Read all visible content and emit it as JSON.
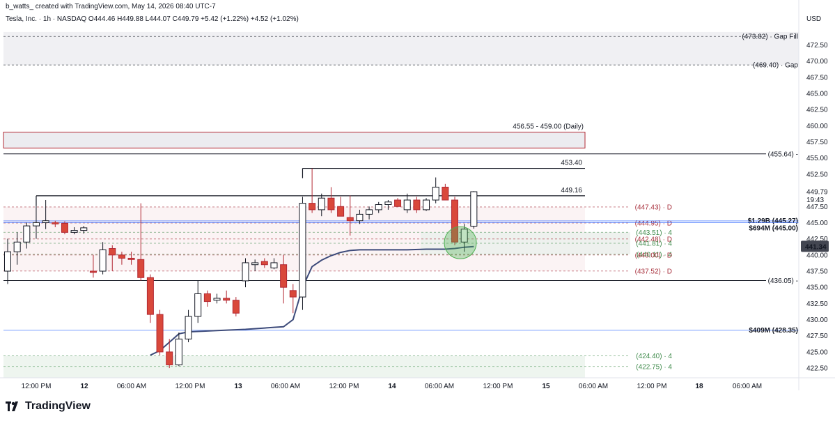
{
  "header": {
    "creator": "b_watts_ created with TradingView.com, May 14, 2026 08:40 UTC-7",
    "symbol_line": "Tesla, Inc. · 1h · NASDAQ  O444.46  H449.88  L444.07  C449.79  +5.42 (+1.22%)  +4.52 (+1.02%)"
  },
  "currency": "USD",
  "footer": {
    "brand": "TradingView"
  },
  "colors": {
    "up_body": "#ffffff",
    "up_border": "#131722",
    "down_body": "#d9483b",
    "down_border": "#b22833",
    "vwap": "#3c4a7a",
    "red_level": "#a8323e",
    "green_level": "#3e8a4a",
    "blue_level": "#2962ff",
    "last_price_bg": "#434651",
    "circle": "#4caf50"
  },
  "chart_data": {
    "type": "candlestick",
    "ylim": [
      421,
      476
    ],
    "y_ticks": [
      "472.50",
      "470.00",
      "467.50",
      "465.00",
      "462.50",
      "460.00",
      "457.50",
      "455.00",
      "452.50",
      "449.79",
      "447.50",
      "445.00",
      "442.50",
      "440.00",
      "437.50",
      "435.00",
      "432.50",
      "430.00",
      "427.50",
      "425.00",
      "422.50"
    ],
    "x_ticks": [
      "12:00 PM",
      "12",
      "06:00 AM",
      "12:00 PM",
      "13",
      "06:00 AM",
      "12:00 PM",
      "14",
      "06:00 AM",
      "12:00 PM",
      "15",
      "06:00 AM",
      "12:00 PM",
      "18",
      "06:00 AM"
    ],
    "last_price": "441.34",
    "current_price_label": "449.79",
    "countdown": "19:43",
    "candles": [
      {
        "o": 437.5,
        "h": 442.5,
        "l": 435.5,
        "c": 440.5
      },
      {
        "o": 440.5,
        "h": 443.5,
        "l": 438.5,
        "c": 442.0
      },
      {
        "o": 442.0,
        "h": 445.0,
        "l": 441.0,
        "c": 444.5
      },
      {
        "o": 444.5,
        "h": 447.8,
        "l": 442.5,
        "c": 445.0
      },
      {
        "o": 445.0,
        "h": 448.5,
        "l": 444.0,
        "c": 445.3
      },
      {
        "o": 445.0,
        "h": 445.3,
        "l": 444.3,
        "c": 444.8
      },
      {
        "o": 444.9,
        "h": 445.2,
        "l": 443.2,
        "c": 443.5
      },
      {
        "o": 443.5,
        "h": 444.3,
        "l": 443.2,
        "c": 443.8
      },
      {
        "o": 443.8,
        "h": 444.5,
        "l": 443.3,
        "c": 444.2
      },
      {
        "o": 437.5,
        "h": 440.0,
        "l": 436.5,
        "c": 437.3
      },
      {
        "o": 437.5,
        "h": 442.0,
        "l": 437.0,
        "c": 440.8
      },
      {
        "o": 441.0,
        "h": 441.5,
        "l": 437.5,
        "c": 440.0
      },
      {
        "o": 440.0,
        "h": 440.5,
        "l": 438.5,
        "c": 439.5
      },
      {
        "o": 439.5,
        "h": 440.5,
        "l": 438.5,
        "c": 439.3
      },
      {
        "o": 439.3,
        "h": 448.0,
        "l": 436.0,
        "c": 436.5
      },
      {
        "o": 436.5,
        "h": 437.0,
        "l": 429.5,
        "c": 430.8
      },
      {
        "o": 430.8,
        "h": 431.5,
        "l": 424.5,
        "c": 425.0
      },
      {
        "o": 425.0,
        "h": 427.0,
        "l": 422.5,
        "c": 423.0
      },
      {
        "o": 423.0,
        "h": 428.0,
        "l": 422.8,
        "c": 427.0
      },
      {
        "o": 427.0,
        "h": 431.5,
        "l": 426.5,
        "c": 430.5
      },
      {
        "o": 430.5,
        "h": 436.0,
        "l": 429.5,
        "c": 434.0
      },
      {
        "o": 434.0,
        "h": 434.5,
        "l": 432.0,
        "c": 432.8
      },
      {
        "o": 433.0,
        "h": 434.0,
        "l": 432.5,
        "c": 433.3
      },
      {
        "o": 433.3,
        "h": 434.5,
        "l": 432.5,
        "c": 433.0
      },
      {
        "o": 433.0,
        "h": 433.5,
        "l": 430.5,
        "c": 431.0
      },
      {
        "o": 436.0,
        "h": 439.5,
        "l": 435.0,
        "c": 438.8
      },
      {
        "o": 438.5,
        "h": 439.3,
        "l": 437.5,
        "c": 438.8
      },
      {
        "o": 439.0,
        "h": 439.5,
        "l": 438.0,
        "c": 438.5
      },
      {
        "o": 438.0,
        "h": 439.5,
        "l": 437.8,
        "c": 438.8
      },
      {
        "o": 438.5,
        "h": 440.0,
        "l": 432.5,
        "c": 435.0
      },
      {
        "o": 434.5,
        "h": 435.5,
        "l": 431.0,
        "c": 433.5
      },
      {
        "o": 433.5,
        "h": 449.0,
        "l": 431.5,
        "c": 448.0
      },
      {
        "o": 448.0,
        "h": 453.4,
        "l": 446.5,
        "c": 447.0
      },
      {
        "o": 447.0,
        "h": 449.5,
        "l": 446.0,
        "c": 448.8
      },
      {
        "o": 448.8,
        "h": 450.5,
        "l": 446.5,
        "c": 447.0
      },
      {
        "o": 447.5,
        "h": 449.0,
        "l": 446.0,
        "c": 446.0
      },
      {
        "o": 445.8,
        "h": 449.2,
        "l": 443.0,
        "c": 445.3
      },
      {
        "o": 445.3,
        "h": 447.0,
        "l": 444.8,
        "c": 446.3
      },
      {
        "o": 446.3,
        "h": 447.5,
        "l": 445.5,
        "c": 447.0
      },
      {
        "o": 447.0,
        "h": 448.2,
        "l": 446.5,
        "c": 447.8
      },
      {
        "o": 447.8,
        "h": 448.5,
        "l": 447.0,
        "c": 448.2
      },
      {
        "o": 448.5,
        "h": 448.8,
        "l": 447.5,
        "c": 447.5
      },
      {
        "o": 447.0,
        "h": 449.5,
        "l": 446.5,
        "c": 448.5
      },
      {
        "o": 448.5,
        "h": 449.0,
        "l": 446.5,
        "c": 447.0
      },
      {
        "o": 447.0,
        "h": 448.8,
        "l": 446.8,
        "c": 448.5
      },
      {
        "o": 448.5,
        "h": 452.0,
        "l": 448.0,
        "c": 450.5
      },
      {
        "o": 450.5,
        "h": 451.0,
        "l": 448.5,
        "c": 448.5
      },
      {
        "o": 448.5,
        "h": 449.0,
        "l": 441.5,
        "c": 442.0
      },
      {
        "o": 442.0,
        "h": 444.8,
        "l": 440.5,
        "c": 444.0
      },
      {
        "o": 444.46,
        "h": 449.88,
        "l": 444.07,
        "c": 449.79
      }
    ],
    "vwap": [
      {
        "i": 29,
        "v": 428.9
      },
      {
        "i": 30,
        "v": 430.0
      },
      {
        "i": 31,
        "v": 435.0
      },
      {
        "i": 32,
        "v": 438.2
      },
      {
        "i": 33,
        "v": 439.2
      },
      {
        "i": 34,
        "v": 439.9
      },
      {
        "i": 35,
        "v": 440.4
      },
      {
        "i": 36,
        "v": 440.7
      },
      {
        "i": 37,
        "v": 440.8
      },
      {
        "i": 38,
        "v": 440.8
      },
      {
        "i": 40,
        "v": 440.8
      },
      {
        "i": 42,
        "v": 440.8
      },
      {
        "i": 44,
        "v": 440.9
      },
      {
        "i": 46,
        "v": 440.9
      },
      {
        "i": 47,
        "v": 441.0
      },
      {
        "i": 48,
        "v": 441.2
      },
      {
        "i": 49,
        "v": 441.3
      }
    ],
    "vwap_early": [
      {
        "i": 15,
        "v": 424.5
      },
      {
        "i": 16,
        "v": 425.2
      },
      {
        "i": 17,
        "v": 426.5
      },
      {
        "i": 18,
        "v": 427.8
      },
      {
        "i": 19,
        "v": 428.1
      },
      {
        "i": 22,
        "v": 428.3
      },
      {
        "i": 25,
        "v": 428.5
      },
      {
        "i": 28,
        "v": 428.8
      },
      {
        "i": 29,
        "v": 428.9
      }
    ],
    "zones": [
      {
        "y1": 469.4,
        "y2": 474.5,
        "fill": "#f0f0f3",
        "border": "none",
        "name": "gap-zone"
      },
      {
        "y1": 456.55,
        "y2": 459.0,
        "fill": "#ececf0",
        "border": "#b22833",
        "name": "daily-zone",
        "label": "456.55 - 459.00 (Daily)"
      },
      {
        "y1": 437.52,
        "y2": 447.43,
        "fill": "#fbf3f4",
        "border": "none",
        "name": "pink-zone"
      },
      {
        "y1": 440.11,
        "y2": 443.51,
        "fill": "#eef1ee",
        "border": "none",
        "name": "green-zone"
      },
      {
        "y1": 421.0,
        "y2": 424.4,
        "fill": "#eef5ef",
        "border": "none",
        "name": "bottom-green-zone"
      }
    ],
    "levels": [
      {
        "y": 473.82,
        "label": "(473.82) · Gap Fill",
        "color": "#131722",
        "dash": true
      },
      {
        "y": 469.4,
        "label": "(469.40) · Gap",
        "color": "#131722",
        "dash": true
      },
      {
        "y": 455.64,
        "label": "(455.64) -",
        "color": "#131722",
        "dash": false
      },
      {
        "y": 447.43,
        "label": "(447.43) · D",
        "color": "#a8323e",
        "dash": true
      },
      {
        "y": 444.95,
        "label": "(444.95) · D",
        "color": "#a8323e",
        "dash": true
      },
      {
        "y": 443.51,
        "label": "(443.51) · 4",
        "color": "#3e8a4a",
        "dash": true
      },
      {
        "y": 442.48,
        "label": "(442.48) · D",
        "color": "#a8323e",
        "dash": true
      },
      {
        "y": 441.81,
        "label": "(441.81) · 4",
        "color": "#3e8a4a",
        "dash": true
      },
      {
        "y": 440.11,
        "label": "(440.11) · 4",
        "color": "#3e8a4a",
        "dash": true
      },
      {
        "y": 440.0,
        "label": "(440.00) · D",
        "color": "#a8323e",
        "dash": true
      },
      {
        "y": 437.52,
        "label": "(437.52) · D",
        "color": "#a8323e",
        "dash": true
      },
      {
        "y": 436.05,
        "label": "(436.05) -",
        "color": "#131722",
        "dash": false
      },
      {
        "y": 424.4,
        "label": "(424.40) · 4",
        "color": "#3e8a4a",
        "dash": true
      },
      {
        "y": 422.75,
        "label": "(422.75) · 4",
        "color": "#3e8a4a",
        "dash": true
      }
    ],
    "volume_levels": [
      {
        "y": 445.27,
        "label": "$1.29B (445.27)",
        "color": "#2962ff"
      },
      {
        "y": 445.0,
        "label": "$694M (445.00)",
        "color": "#2962ff"
      },
      {
        "y": 428.35,
        "label": "$409M (428.35)",
        "color": "#2962ff"
      }
    ],
    "black_lines": [
      {
        "y": 453.4,
        "label": "453.40",
        "from": 31
      },
      {
        "y": 449.16,
        "label": "449.16",
        "from": 3
      }
    ]
  }
}
